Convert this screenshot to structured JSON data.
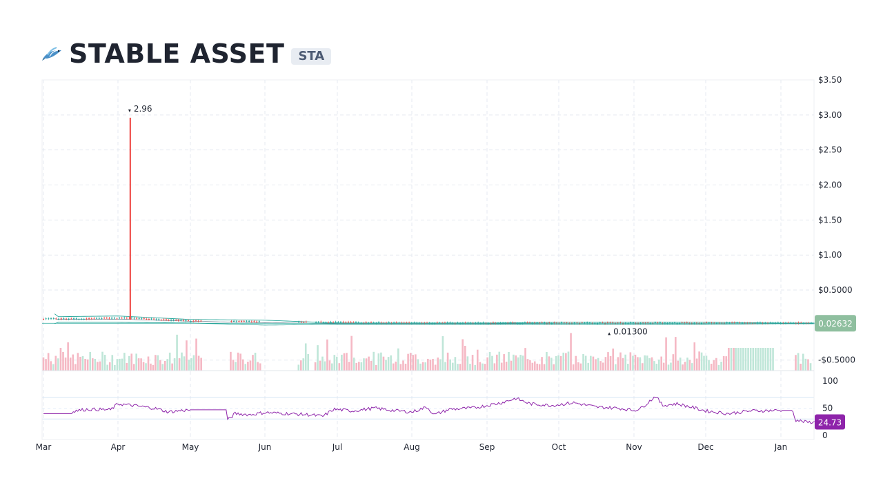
{
  "header": {
    "title": "STABLE ASSET",
    "ticker": "STA",
    "logo_icon": "flying-fish-icon"
  },
  "colors": {
    "up": "#26a69a",
    "down": "#ef5350",
    "up_volume": "#bfe6d8",
    "down_volume": "#f5b8c4",
    "band": "#26a69a",
    "rsi": "#8e24aa",
    "last_price_badge": "#8fbf9f",
    "grid": "#e5e9f0"
  },
  "chart_data": [
    {
      "type": "candlestick",
      "x_labels": [
        "Mar",
        "Apr",
        "May",
        "Jun",
        "Jul",
        "Aug",
        "Sep",
        "Oct",
        "Nov",
        "Dec",
        "Jan"
      ],
      "y_ticks": [
        "$3.50",
        "$3.00",
        "$2.50",
        "$2.00",
        "$1.50",
        "$1.00",
        "$0.5000",
        "-$0.5000"
      ],
      "ylim": [
        -0.65,
        3.5
      ],
      "last_price": "0.02632",
      "last_price_value": 0.02632,
      "annotations": [
        {
          "text": "2.96",
          "value": 2.96,
          "marker": "▾",
          "kind": "high"
        },
        {
          "text": "0.01300",
          "value": 0.013,
          "marker": "▴",
          "kind": "low"
        }
      ],
      "spike": {
        "month_index": 1,
        "day_fraction": 0.17,
        "open": 0.1,
        "close": 0.08,
        "high": 2.96,
        "low": 0.08
      },
      "price_path": [
        [
          0.0,
          0.09
        ],
        [
          0.5,
          0.09
        ],
        [
          1.0,
          0.1
        ],
        [
          1.2,
          0.1
        ],
        [
          1.6,
          0.08
        ],
        [
          2.0,
          0.06
        ],
        [
          3.0,
          0.05
        ],
        [
          4.0,
          0.04
        ],
        [
          5.0,
          0.03
        ],
        [
          6.0,
          0.03
        ],
        [
          7.0,
          0.03
        ],
        [
          8.0,
          0.03
        ],
        [
          9.0,
          0.03
        ],
        [
          10.0,
          0.03
        ],
        [
          10.5,
          0.03
        ]
      ],
      "band_path": [
        [
          0.0,
          0.22,
          0.0
        ],
        [
          0.1,
          0.2,
          0.0
        ],
        [
          0.2,
          0.12,
          0.04
        ],
        [
          1.0,
          0.13,
          0.04
        ],
        [
          2.0,
          0.08,
          0.03
        ],
        [
          3.0,
          0.07,
          0.0
        ],
        [
          4.0,
          0.03,
          0.01
        ],
        [
          5.0,
          0.03,
          0.01
        ],
        [
          6.0,
          0.03,
          0.01
        ],
        [
          7.0,
          0.04,
          0.01
        ],
        [
          8.0,
          0.04,
          0.01
        ],
        [
          9.0,
          0.04,
          0.01
        ],
        [
          10.0,
          0.03,
          0.02
        ],
        [
          10.5,
          0.03,
          0.02
        ]
      ]
    },
    {
      "type": "bar",
      "name": "volume",
      "gaps": [
        [
          2.15,
          2.52
        ],
        [
          2.95,
          3.45
        ],
        [
          3.6,
          3.68
        ],
        [
          9.38,
          10.18
        ]
      ]
    },
    {
      "type": "line",
      "name": "rsi",
      "y_ticks": [
        "100",
        "50",
        "0"
      ],
      "ylim": [
        0,
        100
      ],
      "bands": [
        30,
        70
      ],
      "last_value": "24.73",
      "last_value_number": 24.73,
      "points": [
        [
          0.0,
          40
        ],
        [
          0.4,
          40
        ],
        [
          0.4,
          45
        ],
        [
          0.6,
          48
        ],
        [
          0.9,
          47
        ],
        [
          1.0,
          58
        ],
        [
          1.2,
          55
        ],
        [
          1.5,
          50
        ],
        [
          1.7,
          43
        ],
        [
          1.9,
          46
        ],
        [
          2.0,
          47
        ],
        [
          2.5,
          47
        ],
        [
          2.5,
          28
        ],
        [
          2.6,
          40
        ],
        [
          2.8,
          38
        ],
        [
          3.0,
          42
        ],
        [
          3.3,
          40
        ],
        [
          3.6,
          38
        ],
        [
          3.8,
          35
        ],
        [
          3.95,
          48
        ],
        [
          4.2,
          45
        ],
        [
          4.5,
          50
        ],
        [
          4.8,
          45
        ],
        [
          5.0,
          43
        ],
        [
          5.2,
          52
        ],
        [
          5.3,
          38
        ],
        [
          5.5,
          48
        ],
        [
          5.8,
          50
        ],
        [
          6.0,
          55
        ],
        [
          6.2,
          60
        ],
        [
          6.4,
          68
        ],
        [
          6.6,
          58
        ],
        [
          6.9,
          55
        ],
        [
          7.2,
          60
        ],
        [
          7.5,
          52
        ],
        [
          7.8,
          50
        ],
        [
          8.0,
          46
        ],
        [
          8.1,
          50
        ],
        [
          8.3,
          72
        ],
        [
          8.4,
          55
        ],
        [
          8.6,
          58
        ],
        [
          8.8,
          52
        ],
        [
          9.0,
          45
        ],
        [
          9.3,
          40
        ],
        [
          9.6,
          45
        ],
        [
          10.0,
          46
        ],
        [
          10.15,
          46
        ],
        [
          10.2,
          28
        ],
        [
          10.35,
          24
        ],
        [
          10.5,
          25
        ]
      ]
    }
  ]
}
